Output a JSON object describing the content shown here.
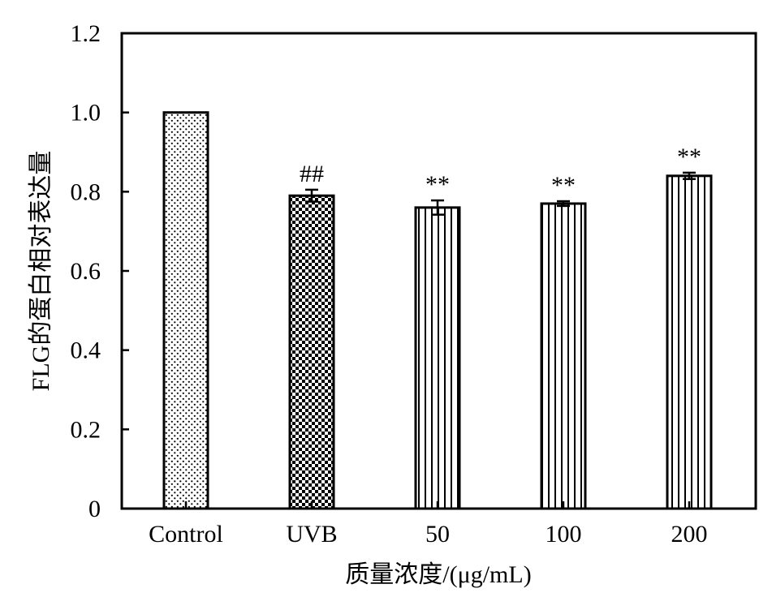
{
  "chart_data": {
    "type": "bar",
    "title": "",
    "ylabel": "FLG的蛋白相对表达量",
    "xlabel": "质量浓度/(μg/mL)",
    "ylim": [
      0,
      1.2
    ],
    "yticks": [
      0,
      0.2,
      0.4,
      0.6,
      0.8,
      1.0,
      1.2
    ],
    "ytick_labels": [
      "0",
      "0.2",
      "0.4",
      "0.6",
      "0.8",
      "1.0",
      "1.2"
    ],
    "categories": [
      "Control",
      "UVB",
      "50",
      "100",
      "200"
    ],
    "values": [
      1.0,
      0.79,
      0.76,
      0.77,
      0.84
    ],
    "errors": [
      0.0,
      0.015,
      0.018,
      0.006,
      0.008
    ],
    "annotations": [
      "",
      "##",
      "**",
      "**",
      "**"
    ],
    "patterns": [
      "dots",
      "checker",
      "vlines",
      "vlines",
      "vlines"
    ],
    "grid": false,
    "legend": "none"
  }
}
